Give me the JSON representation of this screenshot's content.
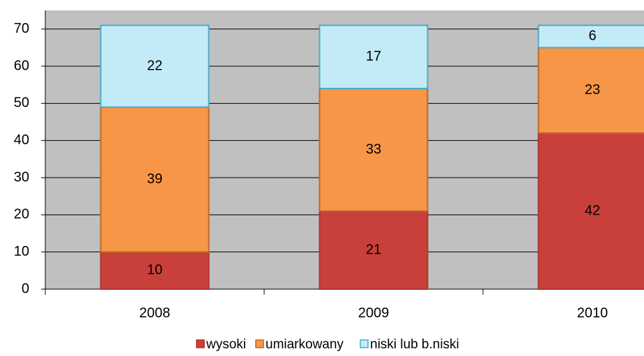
{
  "chart_data": {
    "type": "stacked_bar",
    "categories": [
      "2008",
      "2009",
      "2010"
    ],
    "series": [
      {
        "name": "wysoki",
        "color": "#c9403a",
        "values": [
          10,
          21,
          42
        ]
      },
      {
        "name": "umiarkowany",
        "color": "#f79646",
        "values": [
          39,
          33,
          23
        ]
      },
      {
        "name": "niski lub b.niski",
        "color": "#c3ebf7",
        "values": [
          22,
          17,
          6
        ]
      }
    ],
    "ylim": [
      0,
      75
    ],
    "yticks": [
      0,
      10,
      20,
      30,
      40,
      50,
      60,
      70
    ],
    "grid": true,
    "legend": "bottom"
  }
}
